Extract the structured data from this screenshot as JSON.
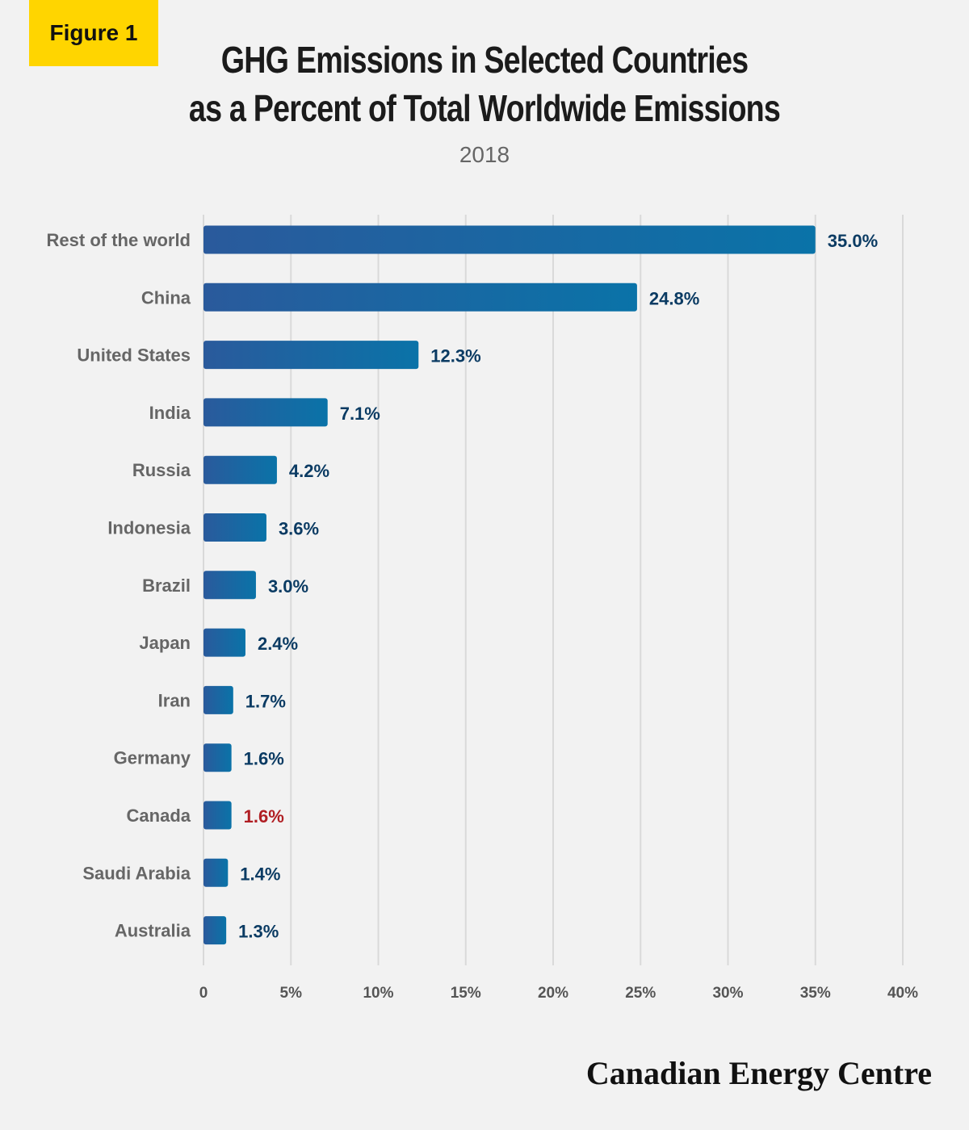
{
  "figure_tag": "Figure 1",
  "title_line1": "GHG Emissions in Selected Countries",
  "title_line2": "as a Percent of Total Worldwide Emissions",
  "subtitle": "2018",
  "brand": "Canadian Energy Centre",
  "colors": {
    "bar_start": "#2a5a9c",
    "bar_end": "#0a73a8",
    "value_label": "#0b3b63",
    "highlight_label": "#b01e23",
    "gridline": "#d9d9d9",
    "figure_tag_bg": "#ffd500"
  },
  "chart_data": {
    "type": "bar",
    "orientation": "horizontal",
    "title": "GHG Emissions in Selected Countries as a Percent of Total Worldwide Emissions",
    "subtitle": "2018",
    "categories": [
      "Rest of the world",
      "China",
      "United States",
      "India",
      "Russia",
      "Indonesia",
      "Brazil",
      "Japan",
      "Iran",
      "Germany",
      "Canada",
      "Saudi Arabia",
      "Australia"
    ],
    "values": [
      35.0,
      24.8,
      12.3,
      7.1,
      4.2,
      3.6,
      3.0,
      2.4,
      1.7,
      1.6,
      1.6,
      1.4,
      1.3
    ],
    "value_labels": [
      "35.0%",
      "24.8%",
      "12.3%",
      "7.1%",
      "4.2%",
      "3.6%",
      "3.0%",
      "2.4%",
      "1.7%",
      "1.6%",
      "1.6%",
      "1.4%",
      "1.3%"
    ],
    "highlight": "Canada",
    "xlim": [
      0,
      40
    ],
    "xticks": [
      0,
      5,
      10,
      15,
      20,
      25,
      30,
      35,
      40
    ],
    "xtick_labels": [
      "0",
      "5%",
      "10%",
      "15%",
      "20%",
      "25%",
      "30%",
      "35%",
      "40%"
    ],
    "grid": true,
    "legend": "none"
  }
}
